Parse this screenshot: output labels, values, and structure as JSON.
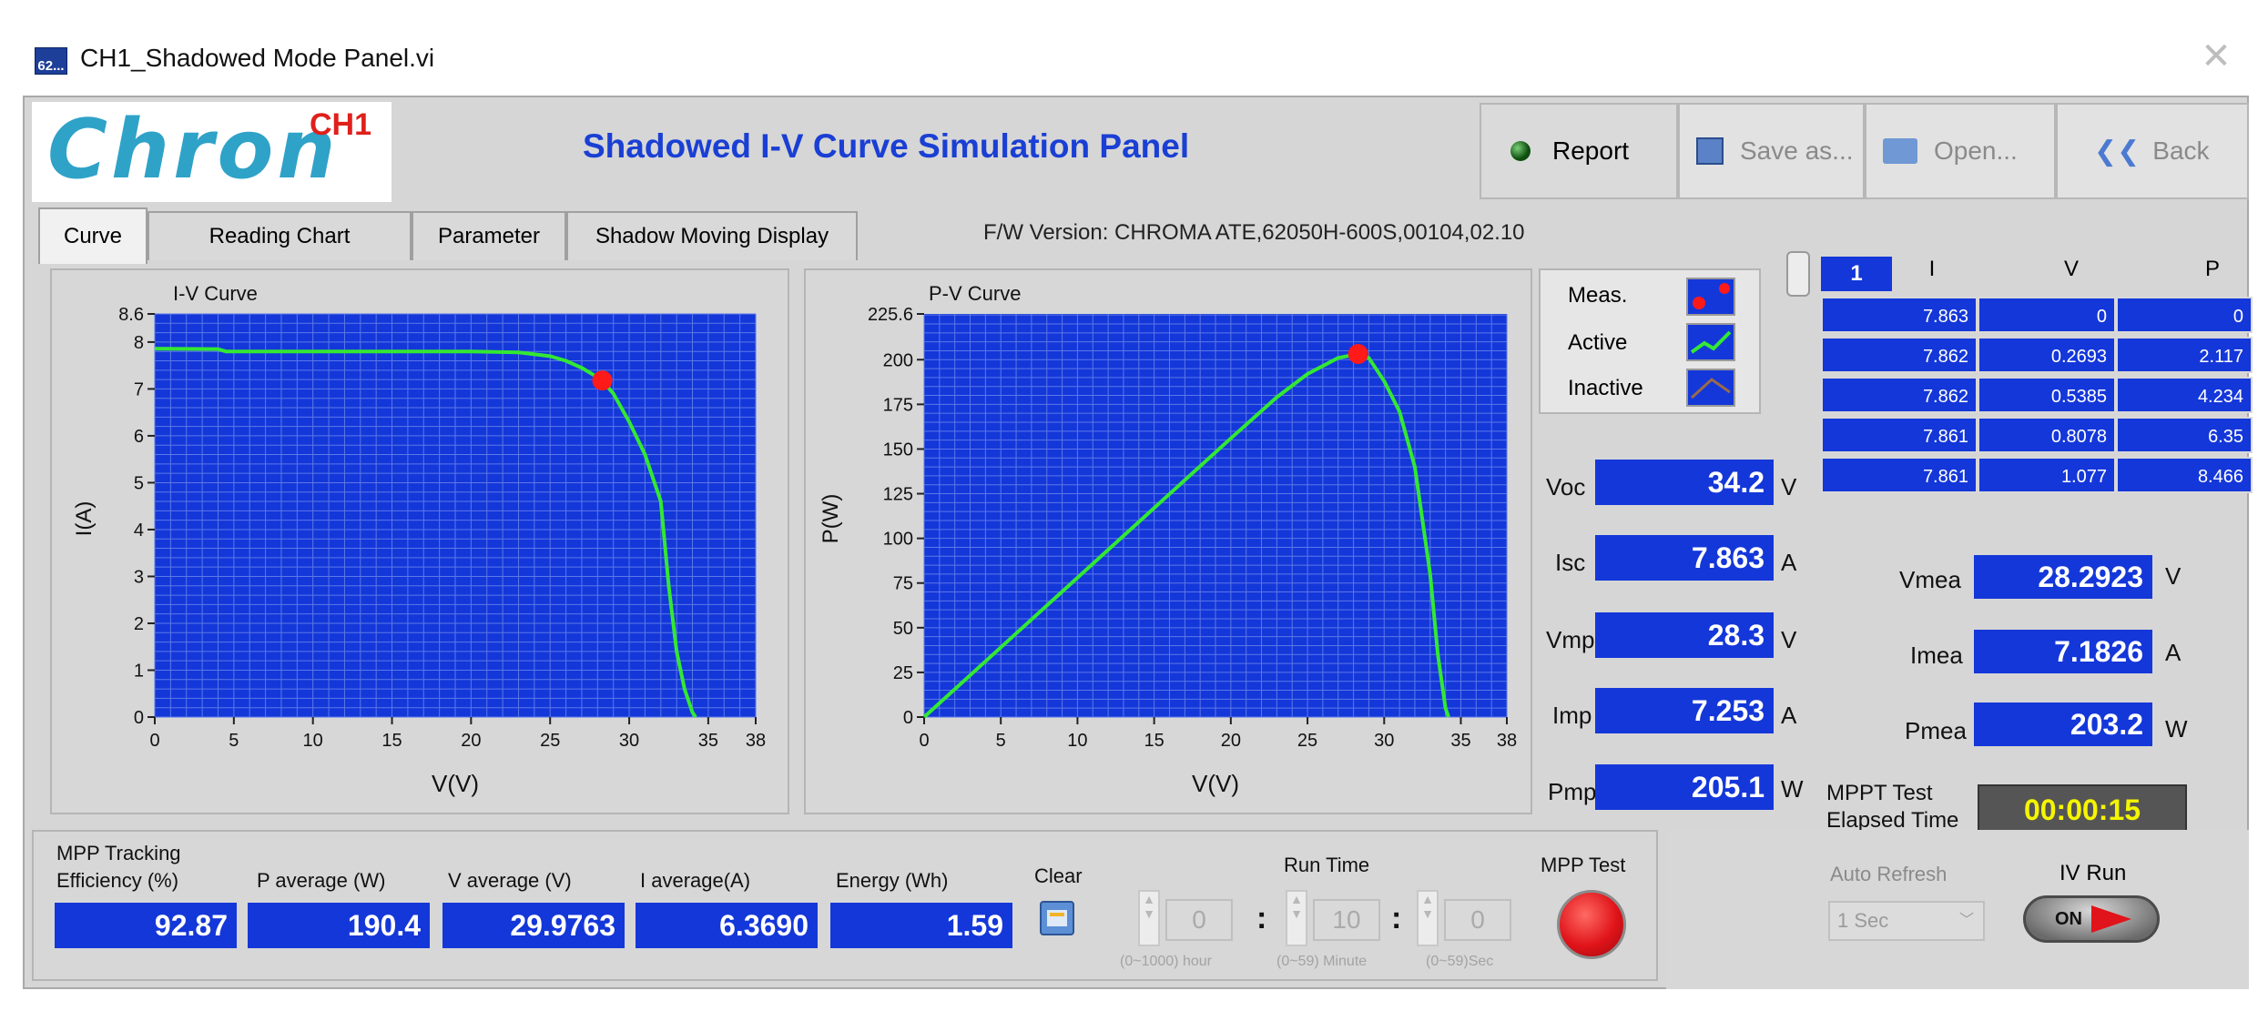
{
  "window": {
    "title": "CH1_Shadowed Mode Panel.vi",
    "icon_text": "62..."
  },
  "header": {
    "logo_text": "Chron",
    "channel": "CH1",
    "panel_title": "Shadowed I-V Curve Simulation Panel",
    "report_label": "Report",
    "save_label": "Save as...",
    "open_label": "Open...",
    "back_label": "Back"
  },
  "tabs": [
    "Curve",
    "Reading Chart",
    "Parameter",
    "Shadow Moving Display"
  ],
  "active_tab": "Curve",
  "fw_version": "F/W Version:  CHROMA ATE,62050H-600S,00104,02.10",
  "chart_data": [
    {
      "type": "line",
      "title": "I-V Curve",
      "xlabel": "V(V)",
      "ylabel": "I(A)",
      "xlim": [
        0,
        38
      ],
      "ylim": [
        0,
        8.6
      ],
      "x_ticks": [
        0,
        5,
        10,
        15,
        20,
        25,
        30,
        35,
        38
      ],
      "y_ticks": [
        0,
        1,
        2,
        3,
        4,
        5,
        6,
        7,
        8,
        8.6
      ],
      "x_tick_labels": [
        "0",
        "5",
        "10",
        "15",
        "20",
        "25",
        "30",
        "35",
        "38"
      ],
      "y_tick_labels": [
        "0",
        "1",
        "2",
        "3",
        "4",
        "5",
        "6",
        "7",
        "8",
        "8.6"
      ],
      "series": [
        {
          "x": [
            0,
            4,
            4.5,
            10,
            15,
            20,
            23,
            25,
            26,
            27,
            28,
            28.3,
            29,
            30,
            31,
            32,
            32.5,
            33,
            33.5,
            34,
            34.2
          ],
          "y": [
            7.86,
            7.85,
            7.8,
            7.8,
            7.8,
            7.8,
            7.78,
            7.7,
            7.6,
            7.45,
            7.25,
            7.18,
            6.9,
            6.3,
            5.6,
            4.6,
            2.8,
            1.4,
            0.6,
            0.1,
            0
          ]
        }
      ],
      "marker": {
        "x": 28.3,
        "y": 7.18
      },
      "grid": true
    },
    {
      "type": "line",
      "title": "P-V Curve",
      "xlabel": "V(V)",
      "ylabel": "P(W)",
      "xlim": [
        0,
        38
      ],
      "ylim": [
        0,
        225.6
      ],
      "x_ticks": [
        0,
        5,
        10,
        15,
        20,
        25,
        30,
        35,
        38
      ],
      "y_ticks": [
        0,
        25,
        50,
        75,
        100,
        125,
        150,
        175,
        200,
        225.6
      ],
      "x_tick_labels": [
        "0",
        "5",
        "10",
        "15",
        "20",
        "25",
        "30",
        "35",
        "38"
      ],
      "y_tick_labels": [
        "0",
        "25",
        "50",
        "75",
        "100",
        "125",
        "150",
        "175",
        "200",
        "225.6"
      ],
      "series": [
        {
          "x": [
            0,
            5,
            10,
            15,
            20,
            23,
            25,
            27,
            28.3,
            29,
            30,
            31,
            32,
            33,
            33.5,
            34,
            34.2
          ],
          "y": [
            0,
            39,
            78,
            117,
            156,
            179,
            192,
            201,
            203.2,
            201,
            188,
            171,
            140,
            80,
            35,
            5,
            0
          ]
        }
      ],
      "marker": {
        "x": 28.3,
        "y": 203.2
      },
      "grid": true
    }
  ],
  "legend": {
    "meas": "Meas.",
    "active": "Active",
    "inactive": "Inactive"
  },
  "readouts": [
    {
      "label": "Voc",
      "value": "34.2",
      "unit": "V"
    },
    {
      "label": "Isc",
      "value": "7.863",
      "unit": "A"
    },
    {
      "label": "Vmp",
      "value": "28.3",
      "unit": "V"
    },
    {
      "label": "Imp",
      "value": "7.253",
      "unit": "A"
    },
    {
      "label": "Pmp",
      "value": "205.1",
      "unit": "W"
    }
  ],
  "table": {
    "index": "1",
    "headers": [
      "I",
      "V",
      "P"
    ],
    "rows": [
      [
        "7.863",
        "0",
        "0"
      ],
      [
        "7.862",
        "0.2693",
        "2.117"
      ],
      [
        "7.862",
        "0.5385",
        "4.234"
      ],
      [
        "7.861",
        "0.8078",
        "6.35"
      ],
      [
        "7.861",
        "1.077",
        "8.466"
      ]
    ]
  },
  "measurements": [
    {
      "label": "Vmea",
      "value": "28.2923",
      "unit": "V"
    },
    {
      "label": "Imea",
      "value": "7.1826",
      "unit": "A"
    },
    {
      "label": "Pmea",
      "value": "203.2",
      "unit": "W"
    }
  ],
  "mppt": {
    "label_1": "MPPT Test",
    "label_2": "Elapsed Time",
    "elapsed": "00:00:15"
  },
  "bottom": {
    "efficiency_label_1": "MPP Tracking",
    "efficiency_label_2": "Efficiency (%)",
    "efficiency": "92.87",
    "p_avg_label": "P average  (W)",
    "p_avg": "190.4",
    "v_avg_label": "V average (V)",
    "v_avg": "29.9763",
    "i_avg_label": "I average(A)",
    "i_avg": "6.3690",
    "energy_label": "Energy  (Wh)",
    "energy": "1.59",
    "clear_label": "Clear",
    "run_time_label": "Run Time",
    "hours": "0",
    "minutes": "10",
    "seconds": "0",
    "hours_range": "(0~1000) hour",
    "minutes_range": "(0~59) Minute",
    "seconds_range": "(0~59)Sec",
    "mpp_test_label": "MPP Test"
  },
  "right_controls": {
    "auto_refresh_label": "Auto Refresh",
    "auto_refresh_value": "1 Sec",
    "iv_run_label": "IV Run",
    "iv_run_state": "ON"
  },
  "colors": {
    "plot_bg": "#1437d9",
    "curve": "#33e833",
    "marker": "#ff1a1a",
    "value_box": "#1437d9",
    "mppt_time_bg": "#555555",
    "mppt_time_fg": "#f5f500",
    "title_blue": "#1a3fd4",
    "logo_blue": "#2fa2c8",
    "logo_red": "#e0201b"
  }
}
